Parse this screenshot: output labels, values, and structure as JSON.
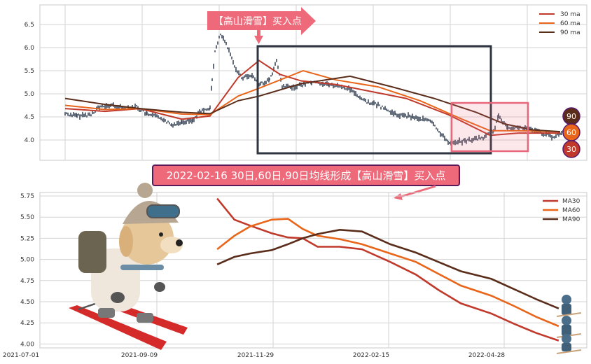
{
  "colors": {
    "ma30": "#c0392b",
    "ma60": "#e8651a",
    "ma90": "#5a2d1a",
    "price": "#3d4a5c",
    "annotation": "#ee6a7a",
    "box": "#2f3640"
  },
  "annotations": {
    "top_label": "【高山滑雪】买入点",
    "banner": "2022-02-16 30日,60日,90日均线形成【高山滑雪】买入点",
    "badges": [
      "90",
      "60",
      "30"
    ]
  },
  "illustration": {
    "left": "skiing-dog",
    "right": "small-skiers"
  },
  "chart_data": [
    {
      "type": "line",
      "title": "",
      "xlabel": "",
      "ylabel": "",
      "ylim": [
        3.55,
        6.92
      ],
      "yticks": [
        "4.0",
        "4.5",
        "5.0",
        "5.5",
        "6.0",
        "6.5"
      ],
      "grid": true,
      "legend": "top-right",
      "price": [
        4.57,
        4.52,
        4.55,
        4.7,
        4.75,
        4.7,
        4.72,
        4.55,
        4.48,
        4.32,
        4.4,
        4.42,
        4.6,
        4.7,
        5.3,
        5.9,
        6.3,
        6.0,
        5.6,
        5.35,
        5.4,
        5.2,
        5.3,
        5.7,
        5.15,
        5.15,
        5.25,
        5.2,
        5.1,
        4.85,
        4.75,
        4.55,
        4.5,
        4.4,
        3.95,
        3.97,
        4.05,
        4.2,
        4.5,
        4.28,
        4.25,
        4.18,
        4.05,
        4.18
      ],
      "series": [
        {
          "name": "30 ma",
          "values": [
            4.68,
            4.62,
            4.68,
            4.45,
            4.52,
            5.35,
            5.72,
            5.42,
            5.28,
            5.2,
            5.08,
            4.9,
            4.55,
            4.1,
            4.15,
            4.15
          ]
        },
        {
          "name": "60 ma",
          "values": [
            4.75,
            4.66,
            4.68,
            4.56,
            4.55,
            4.95,
            5.12,
            5.3,
            5.5,
            5.3,
            5.15,
            4.85,
            4.45,
            4.2,
            4.2,
            4.18
          ]
        },
        {
          "name": "90 ma",
          "values": [
            4.9,
            4.77,
            4.68,
            4.6,
            4.57,
            4.85,
            4.95,
            5.22,
            5.38,
            5.15,
            4.9,
            4.6,
            4.35,
            4.22,
            4.18
          ]
        }
      ]
    },
    {
      "type": "line",
      "title": "",
      "xlabel": "",
      "ylabel": "",
      "ylim": [
        3.96,
        5.78
      ],
      "yticks": [
        "4.00",
        "4.25",
        "4.50",
        "4.75",
        "5.00",
        "5.25",
        "5.50",
        "5.75"
      ],
      "xticks": [
        "2021-07-01",
        "2021-09-09",
        "2021-11-29",
        "2022-02-15",
        "2022-04-28"
      ],
      "grid": true,
      "legend": "top-right",
      "x": [
        "2021-10-21",
        "2021-11-02",
        "2021-11-13",
        "2021-11-28",
        "2021-12-09",
        "2021-12-19",
        "2021-12-29",
        "2022-01-13",
        "2022-01-28",
        "2022-02-16",
        "2022-03-04",
        "2022-03-18",
        "2022-04-01",
        "2022-04-20",
        "2022-05-04",
        "2022-05-18",
        "2022-06-01"
      ],
      "series": [
        {
          "name": "MA30",
          "values": [
            5.72,
            5.47,
            5.4,
            5.31,
            5.26,
            5.25,
            5.15,
            5.15,
            5.12,
            4.97,
            4.82,
            4.64,
            4.48,
            4.36,
            4.24,
            4.13,
            4.04
          ]
        },
        {
          "name": "MA60",
          "values": [
            5.12,
            5.28,
            5.39,
            5.47,
            5.48,
            5.36,
            5.28,
            5.24,
            5.18,
            5.07,
            4.97,
            4.83,
            4.69,
            4.57,
            4.45,
            4.32,
            4.21
          ]
        },
        {
          "name": "MA90",
          "values": [
            4.94,
            5.03,
            5.07,
            5.11,
            5.18,
            5.25,
            5.3,
            5.35,
            5.33,
            5.18,
            5.08,
            4.97,
            4.86,
            4.77,
            4.65,
            4.53,
            4.42
          ]
        }
      ]
    }
  ]
}
